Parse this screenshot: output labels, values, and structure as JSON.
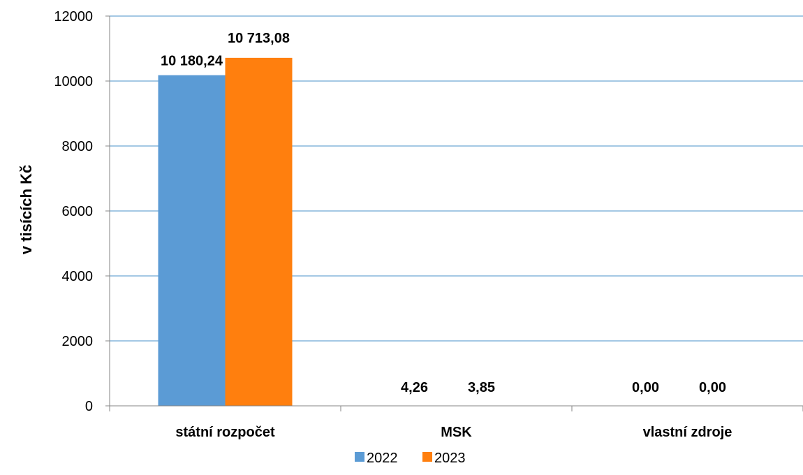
{
  "chart_data": {
    "type": "bar",
    "categories": [
      "státní rozpočet",
      "MSK",
      "vlastní zdroje"
    ],
    "series": [
      {
        "name": "2022",
        "values": [
          10180.24,
          4.26,
          0.0
        ],
        "labels": [
          "10 180,24",
          "4,26",
          "0,00"
        ],
        "color": "#5B9BD5"
      },
      {
        "name": "2023",
        "values": [
          10713.08,
          3.85,
          0.0
        ],
        "labels": [
          "10 713,08",
          "3,85",
          "0,00"
        ],
        "color": "#FF7F0E"
      }
    ],
    "ylabel": "v tisících Kč",
    "ylim": [
      0,
      12000
    ],
    "yticks": [
      0,
      2000,
      4000,
      6000,
      8000,
      10000,
      12000
    ],
    "grid": true,
    "gridline_color": "#4A90C8",
    "legend_position": "bottom"
  }
}
